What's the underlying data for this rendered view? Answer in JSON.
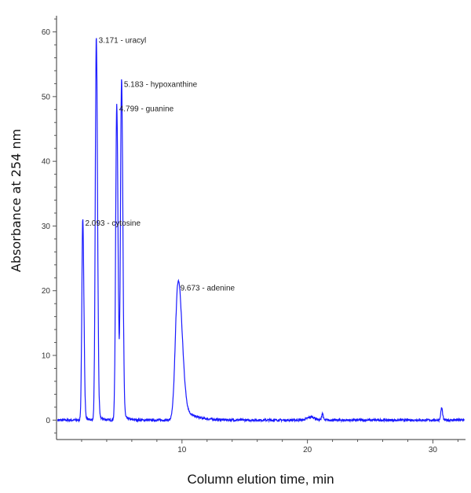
{
  "chart_data": {
    "type": "line",
    "title": "",
    "xlabel": "Column elution time, min",
    "ylabel": "Absorbance at 254 nm",
    "xlim": [
      0,
      32.6
    ],
    "ylim": [
      -3,
      62.5
    ],
    "xticks": [
      10,
      20,
      30
    ],
    "yticks": [
      0,
      10,
      20,
      30,
      40,
      50,
      60
    ],
    "grid": false,
    "line_color": "#1a1aff",
    "peaks": [
      {
        "time": 2.093,
        "height": 31.0,
        "label": "2.093 -  cytosine"
      },
      {
        "time": 3.171,
        "height": 59.3,
        "label": "3.171 -  uracyl"
      },
      {
        "time": 4.799,
        "height": 48.7,
        "label": "4.799 -  guanine"
      },
      {
        "time": 5.183,
        "height": 52.5,
        "label": "5.183 -  hypoxanthine"
      },
      {
        "time": 9.673,
        "height": 21.0,
        "label": "9.673 -  adenine"
      }
    ],
    "minor_peaks": [
      {
        "time": 20.3,
        "height": 0.5
      },
      {
        "time": 21.2,
        "height": 1.1
      },
      {
        "time": 30.7,
        "height": 1.9
      }
    ]
  }
}
